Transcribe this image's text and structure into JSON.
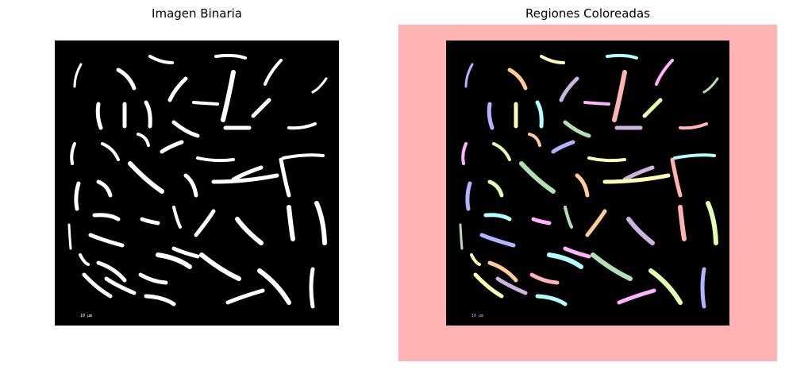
{
  "panels": {
    "left": {
      "title": "Imagen Binaria",
      "fill": "#ffffff",
      "background": "#000000"
    },
    "right": {
      "title": "Regiones Coloreadas",
      "outer_background": "#ffb3b3",
      "background": "#000000"
    }
  },
  "palette": [
    "#b3b3ff",
    "#ffffb3",
    "#b3ffff",
    "#ffb3ff",
    "#b3e0b3",
    "#ffcc99",
    "#ccb3e0",
    "#ffb3b3",
    "#e0ffb3"
  ],
  "scale_label": "10 µm"
}
